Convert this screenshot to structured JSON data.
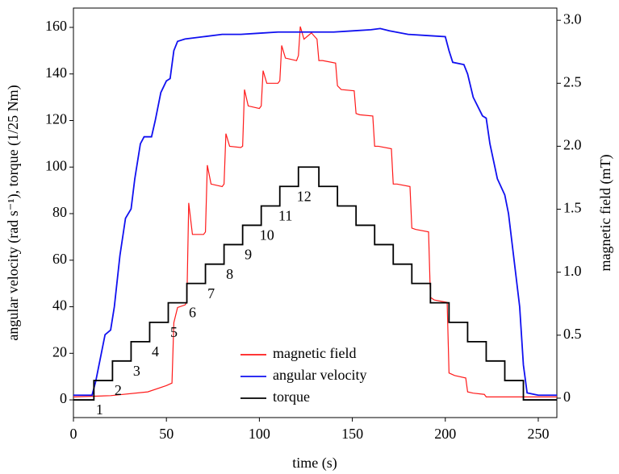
{
  "chart_data": {
    "type": "line",
    "xlabel": "time (s)",
    "ylabel": "angular velocity (rad s⁻¹), torque (1/25 Nm)",
    "y2label": "magnetic field (mT)",
    "xlim": [
      0,
      260
    ],
    "xticks": [
      0,
      50,
      100,
      150,
      200,
      250
    ],
    "ylim": [
      -7.6,
      168.3
    ],
    "yticks": [
      0,
      20,
      40,
      60,
      80,
      100,
      120,
      140,
      160
    ],
    "y2lim": [
      -0.154,
      3.097
    ],
    "y2ticks": [
      0,
      0.5,
      {
        "value": 1,
        "label": "1.0"
      },
      1.5,
      {
        "value": 2,
        "label": "2.0"
      },
      2.5,
      {
        "value": 3,
        "label": "3.0"
      }
    ],
    "legend": "lower center",
    "step_labels": [
      "1",
      "2",
      "3",
      "4",
      "5",
      "6",
      "7",
      "8",
      "9",
      "10",
      "11",
      "12"
    ],
    "series": [
      {
        "name": "magnetic field",
        "color": "#ff1a1a",
        "axis": "y2",
        "x": [
          0,
          20,
          40,
          50,
          53,
          54,
          56,
          60,
          61,
          62,
          64,
          70,
          71,
          72,
          74,
          80,
          81,
          82,
          84,
          90,
          91,
          92,
          94,
          100,
          101,
          102,
          104,
          110,
          111,
          112,
          114,
          120,
          121,
          122,
          124,
          128,
          131,
          132,
          134,
          141,
          142,
          144,
          151,
          152,
          154,
          161,
          162,
          164,
          171,
          172,
          174,
          181,
          182,
          184,
          191,
          192,
          194,
          201,
          202,
          205,
          211,
          212,
          215,
          221,
          222,
          240,
          260
        ],
        "values": [
          0.01,
          0.02,
          0.05,
          0.1,
          0.12,
          0.6,
          0.72,
          0.74,
          0.76,
          1.55,
          1.3,
          1.3,
          1.32,
          1.85,
          1.7,
          1.68,
          1.7,
          2.1,
          2.0,
          1.99,
          2.0,
          2.45,
          2.32,
          2.3,
          2.32,
          2.6,
          2.5,
          2.5,
          2.52,
          2.8,
          2.7,
          2.68,
          2.72,
          2.95,
          2.85,
          2.9,
          2.85,
          2.68,
          2.68,
          2.66,
          2.48,
          2.45,
          2.44,
          2.26,
          2.25,
          2.24,
          2.0,
          2.0,
          1.98,
          1.7,
          1.7,
          1.68,
          1.35,
          1.34,
          1.32,
          0.8,
          0.78,
          0.76,
          0.2,
          0.18,
          0.16,
          0.05,
          0.04,
          0.03,
          0.01,
          0.01,
          0.01
        ]
      },
      {
        "name": "angular velocity",
        "color": "#1010f0",
        "x": [
          0,
          10,
          12,
          15,
          17,
          20,
          22,
          25,
          28,
          31,
          33,
          36,
          38,
          42,
          44,
          47,
          50,
          52,
          54,
          56,
          60,
          70,
          80,
          90,
          100,
          110,
          120,
          130,
          140,
          150,
          160,
          165,
          170,
          180,
          190,
          200,
          202,
          204,
          210,
          212,
          215,
          220,
          222,
          224,
          228,
          232,
          234,
          237,
          240,
          242,
          244,
          250,
          260
        ],
        "values": [
          2,
          2,
          8,
          20,
          28,
          30,
          40,
          62,
          78,
          82,
          95,
          110,
          113,
          113,
          120,
          132,
          137,
          138,
          150,
          154,
          155,
          156,
          157,
          157,
          157.5,
          158,
          158,
          158,
          158,
          158.5,
          159,
          159.5,
          158.5,
          157,
          156.5,
          156,
          150,
          145,
          144,
          140,
          130,
          122,
          121,
          110,
          95,
          88,
          80,
          60,
          40,
          15,
          3,
          2,
          2
        ]
      },
      {
        "name": "torque",
        "color": "#000000",
        "x": [
          0,
          11,
          11,
          21,
          21,
          31,
          31,
          41,
          41,
          51,
          51,
          61,
          61,
          71,
          71,
          81,
          81,
          91,
          91,
          101,
          101,
          111,
          111,
          121,
          121,
          132,
          132,
          142,
          142,
          152,
          152,
          162,
          162,
          172,
          172,
          182,
          182,
          192,
          192,
          202,
          202,
          212,
          212,
          222,
          222,
          232,
          232,
          242,
          242,
          260
        ],
        "values": [
          0,
          0,
          8.3,
          8.3,
          16.7,
          16.7,
          25,
          25,
          33.3,
          33.3,
          41.7,
          41.7,
          50,
          50,
          58.3,
          58.3,
          66.7,
          66.7,
          75,
          75,
          83.3,
          83.3,
          91.7,
          91.7,
          100,
          100,
          91.7,
          91.7,
          83.3,
          83.3,
          75,
          75,
          66.7,
          66.7,
          58.3,
          58.3,
          50,
          50,
          41.7,
          41.7,
          33.3,
          33.3,
          25,
          25,
          16.7,
          16.7,
          8.3,
          8.3,
          0,
          0
        ]
      }
    ]
  }
}
